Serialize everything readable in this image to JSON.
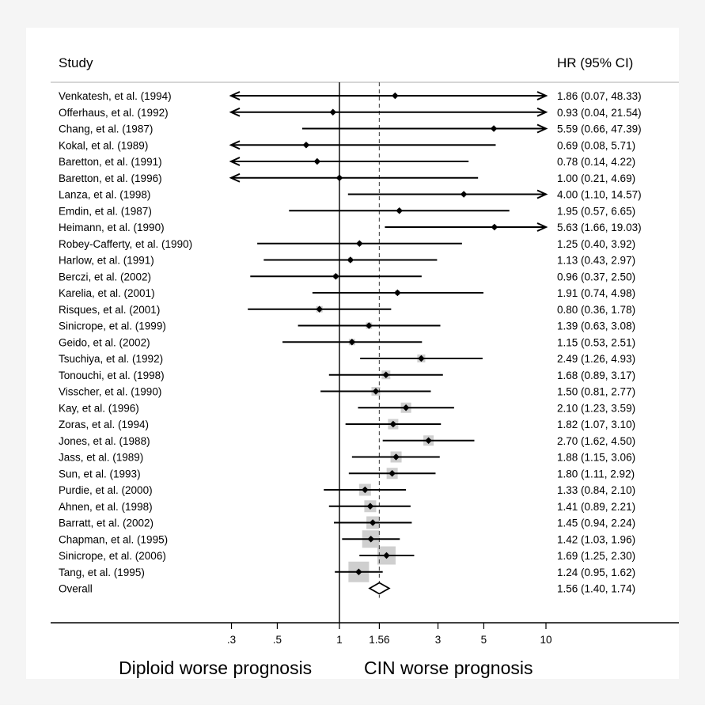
{
  "header": {
    "study_label": "Study",
    "hr_label": "HR (95% CI)"
  },
  "footer": {
    "left_label": "Diploid worse prognosis",
    "right_label": "CIN worse prognosis"
  },
  "colors": {
    "frame_bg": "#f5f5f5",
    "panel_bg": "#ffffff",
    "line": "#000000",
    "weight_box": "#cfcfcf",
    "header_rule": "#c8c8c8"
  },
  "chart_data": {
    "type": "forest",
    "scale": "log",
    "xlim": [
      0.25,
      10
    ],
    "null_line": 1,
    "overall_line": 1.56,
    "xticks": [
      {
        "value": 0.3,
        "label": ".3"
      },
      {
        "value": 0.5,
        "label": ".5"
      },
      {
        "value": 1,
        "label": "1"
      },
      {
        "value": 1.56,
        "label": "1.56"
      },
      {
        "value": 3,
        "label": "3"
      },
      {
        "value": 5,
        "label": "5"
      },
      {
        "value": 10,
        "label": "10"
      }
    ],
    "studies": [
      {
        "study": "Venkatesh, et al. (1994)",
        "hr": 1.86,
        "lo": 0.07,
        "hi": 48.33,
        "hr_text": "1.86 (0.07, 48.33)",
        "weight": 0
      },
      {
        "study": "Offerhaus, et al. (1992)",
        "hr": 0.93,
        "lo": 0.04,
        "hi": 21.54,
        "hr_text": "0.93 (0.04, 21.54)",
        "weight": 0
      },
      {
        "study": "Chang, et al. (1987)",
        "hr": 5.59,
        "lo": 0.66,
        "hi": 47.39,
        "hr_text": "5.59 (0.66, 47.39)",
        "weight": 0
      },
      {
        "study": "Kokal, et al. (1989)",
        "hr": 0.69,
        "lo": 0.08,
        "hi": 5.71,
        "hr_text": "0.69 (0.08, 5.71)",
        "weight": 0
      },
      {
        "study": "Baretton, et al. (1991)",
        "hr": 0.78,
        "lo": 0.14,
        "hi": 4.22,
        "hr_text": "0.78 (0.14, 4.22)",
        "weight": 0
      },
      {
        "study": "Baretton, et al. (1996)",
        "hr": 1.0,
        "lo": 0.21,
        "hi": 4.69,
        "hr_text": "1.00 (0.21, 4.69)",
        "weight": 0
      },
      {
        "study": "Lanza, et al. (1998)",
        "hr": 4.0,
        "lo": 1.1,
        "hi": 14.57,
        "hr_text": "4.00 (1.10, 14.57)",
        "weight": 0
      },
      {
        "study": "Emdin, et al. (1987)",
        "hr": 1.95,
        "lo": 0.57,
        "hi": 6.65,
        "hr_text": "1.95 (0.57, 6.65)",
        "weight": 0.5
      },
      {
        "study": "Heimann, et al. (1990)",
        "hr": 5.63,
        "lo": 1.66,
        "hi": 19.03,
        "hr_text": "5.63 (1.66, 19.03)",
        "weight": 0
      },
      {
        "study": "Robey-Cafferty, et al. (1990)",
        "hr": 1.25,
        "lo": 0.4,
        "hi": 3.92,
        "hr_text": "1.25 (0.40, 3.92)",
        "weight": 0.5
      },
      {
        "study": "Harlow, et al. (1991)",
        "hr": 1.13,
        "lo": 0.43,
        "hi": 2.97,
        "hr_text": "1.13 (0.43, 2.97)",
        "weight": 0.6
      },
      {
        "study": "Berczi, et al. (2002)",
        "hr": 0.96,
        "lo": 0.37,
        "hi": 2.5,
        "hr_text": "0.96 (0.37, 2.50)",
        "weight": 0.6
      },
      {
        "study": "Karelia, et al. (2001)",
        "hr": 1.91,
        "lo": 0.74,
        "hi": 4.98,
        "hr_text": "1.91 (0.74, 4.98)",
        "weight": 0.6
      },
      {
        "study": "Risques, et al. (2001)",
        "hr": 0.8,
        "lo": 0.36,
        "hi": 1.78,
        "hr_text": "0.80 (0.36, 1.78)",
        "weight": 0.8
      },
      {
        "study": "Sinicrope, et al. (1999)",
        "hr": 1.39,
        "lo": 0.63,
        "hi": 3.08,
        "hr_text": "1.39 (0.63, 3.08)",
        "weight": 0.8
      },
      {
        "study": "Geido, et al. (2002)",
        "hr": 1.15,
        "lo": 0.53,
        "hi": 2.51,
        "hr_text": "1.15 (0.53, 2.51)",
        "weight": 0.8
      },
      {
        "study": "Tsuchiya, et al. (1992)",
        "hr": 2.49,
        "lo": 1.26,
        "hi": 4.93,
        "hr_text": "2.49 (1.26, 4.93)",
        "weight": 1.0
      },
      {
        "study": "Tonouchi, et al. (1998)",
        "hr": 1.68,
        "lo": 0.89,
        "hi": 3.17,
        "hr_text": "1.68 (0.89, 3.17)",
        "weight": 1.1
      },
      {
        "study": "Visscher, et al. (1990)",
        "hr": 1.5,
        "lo": 0.81,
        "hi": 2.77,
        "hr_text": "1.50 (0.81, 2.77)",
        "weight": 1.1
      },
      {
        "study": "Kay, et al. (1996)",
        "hr": 2.1,
        "lo": 1.23,
        "hi": 3.59,
        "hr_text": "2.10 (1.23, 3.59)",
        "weight": 1.3
      },
      {
        "study": "Zoras, et al. (1994)",
        "hr": 1.82,
        "lo": 1.07,
        "hi": 3.1,
        "hr_text": "1.82 (1.07, 3.10)",
        "weight": 1.3
      },
      {
        "study": "Jones, et al. (1988)",
        "hr": 2.7,
        "lo": 1.62,
        "hi": 4.5,
        "hr_text": "2.70 (1.62, 4.50)",
        "weight": 1.3
      },
      {
        "study": "Jass, et al. (1989)",
        "hr": 1.88,
        "lo": 1.15,
        "hi": 3.06,
        "hr_text": "1.88 (1.15, 3.06)",
        "weight": 1.4
      },
      {
        "study": "Sun, et al. (1993)",
        "hr": 1.8,
        "lo": 1.11,
        "hi": 2.92,
        "hr_text": "1.80 (1.11, 2.92)",
        "weight": 1.4
      },
      {
        "study": "Purdie, et al. (2000)",
        "hr": 1.33,
        "lo": 0.84,
        "hi": 2.1,
        "hr_text": "1.33 (0.84, 2.10)",
        "weight": 1.5
      },
      {
        "study": "Ahnen, et al. (1998)",
        "hr": 1.41,
        "lo": 0.89,
        "hi": 2.21,
        "hr_text": "1.41 (0.89, 2.21)",
        "weight": 1.5
      },
      {
        "study": "Barratt, et al. (2002)",
        "hr": 1.45,
        "lo": 0.94,
        "hi": 2.24,
        "hr_text": "1.45 (0.94, 2.24)",
        "weight": 1.6
      },
      {
        "study": "Chapman, et al. (1995)",
        "hr": 1.42,
        "lo": 1.03,
        "hi": 1.96,
        "hr_text": "1.42 (1.03, 1.96)",
        "weight": 2.2
      },
      {
        "study": "Sinicrope, et al. (2006)",
        "hr": 1.69,
        "lo": 1.25,
        "hi": 2.3,
        "hr_text": "1.69 (1.25, 2.30)",
        "weight": 2.3
      },
      {
        "study": "Tang, et al. (1995)",
        "hr": 1.24,
        "lo": 0.95,
        "hi": 1.62,
        "hr_text": "1.24 (0.95, 1.62)",
        "weight": 2.6
      }
    ],
    "overall": {
      "study": "Overall",
      "hr": 1.56,
      "lo": 1.4,
      "hi": 1.74,
      "hr_text": "1.56 (1.40, 1.74)"
    }
  }
}
